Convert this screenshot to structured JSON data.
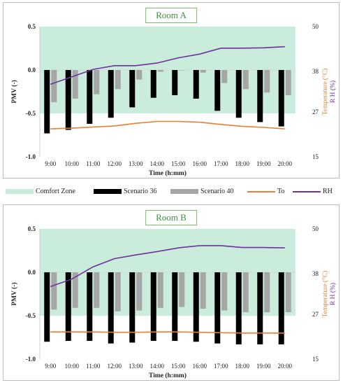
{
  "legend": {
    "comfort": "Comfort Zone",
    "s36": "Scenario 36",
    "s40": "Scenario 40",
    "to": "To",
    "rh": "RH"
  },
  "colors": {
    "comfort": "#c9ecdb",
    "s36": "#000000",
    "s40": "#a6a6a6",
    "to": "#ed7d31",
    "rh": "#7030a0",
    "ylabel_right": "#ed7d31",
    "rh_label": "#7030a0",
    "title_border": "#7dbb6a"
  },
  "chart_data": [
    {
      "type": "bar",
      "title": "Room A",
      "xlabel": "Time (h:mm)",
      "ylabel": "PMV (-)",
      "y2label_temp": "Temperature (°C)",
      "y2label_rh": "R H (%)",
      "ylim": [
        -1.0,
        0.5
      ],
      "yticks": [
        "0.5",
        "0.0",
        "-0.5",
        "-1.0"
      ],
      "y2lim": [
        15,
        50
      ],
      "y2ticks": [
        "50",
        "38",
        "27",
        "15"
      ],
      "comfort_zone": [
        -0.5,
        0.5
      ],
      "categories": [
        "9:00",
        "10:00",
        "11:00",
        "12:00",
        "13:00",
        "14:00",
        "15:00",
        "16:00",
        "17:00",
        "18:00",
        "19:00",
        "20:00"
      ],
      "series": [
        {
          "name": "Scenario 36",
          "values": [
            -0.73,
            -0.69,
            -0.62,
            -0.55,
            -0.43,
            -0.32,
            -0.29,
            -0.33,
            -0.47,
            -0.55,
            -0.6,
            -0.65
          ]
        },
        {
          "name": "Scenario 40",
          "values": [
            -0.37,
            -0.33,
            -0.28,
            -0.22,
            -0.11,
            -0.02,
            0.0,
            -0.03,
            -0.15,
            -0.22,
            -0.26,
            -0.29
          ]
        },
        {
          "name": "To",
          "axis": "right",
          "values": [
            22.5,
            22.7,
            23.0,
            23.3,
            24.0,
            24.5,
            24.5,
            24.3,
            23.7,
            23.2,
            22.9,
            22.5
          ]
        },
        {
          "name": "RH",
          "axis": "right",
          "values": [
            34.5,
            36.5,
            38.5,
            39.5,
            39.5,
            40.2,
            41.6,
            42.6,
            44.2,
            44.2,
            44.3,
            44.6
          ]
        }
      ]
    },
    {
      "type": "bar",
      "title": "Room B",
      "xlabel": "Time (h:mm)",
      "ylabel": "PMV (-)",
      "y2label_temp": "Temperature (°C)",
      "y2label_rh": "R H (%)",
      "ylim": [
        -1.0,
        0.5
      ],
      "yticks": [
        "0.5",
        "0.0",
        "-0.5",
        "-1.0"
      ],
      "y2lim": [
        15,
        50
      ],
      "y2ticks": [
        "50",
        "38",
        "27",
        "15"
      ],
      "comfort_zone": [
        -0.5,
        0.5
      ],
      "categories": [
        "9:00",
        "10:00",
        "11:00",
        "12:00",
        "13:00",
        "14:00",
        "15:00",
        "16:00",
        "17:00",
        "18:00",
        "19:00",
        "20:00"
      ],
      "series": [
        {
          "name": "Scenario 36",
          "values": [
            -0.8,
            -0.79,
            -0.79,
            -0.82,
            -0.81,
            -0.79,
            -0.79,
            -0.8,
            -0.82,
            -0.83,
            -0.83,
            -0.83
          ]
        },
        {
          "name": "Scenario 40",
          "values": [
            -0.43,
            -0.41,
            -0.41,
            -0.45,
            -0.44,
            -0.41,
            -0.4,
            -0.42,
            -0.44,
            -0.46,
            -0.46,
            -0.46
          ]
        },
        {
          "name": "To",
          "axis": "right",
          "values": [
            22.3,
            22.3,
            22.3,
            22.2,
            22.2,
            22.3,
            22.3,
            22.2,
            22.1,
            22.0,
            22.0,
            22.0
          ]
        },
        {
          "name": "RH",
          "axis": "right",
          "values": [
            34.5,
            36.5,
            39.8,
            42.0,
            43.0,
            43.9,
            44.9,
            45.5,
            45.5,
            45.0,
            45.0,
            44.9
          ]
        }
      ]
    }
  ]
}
